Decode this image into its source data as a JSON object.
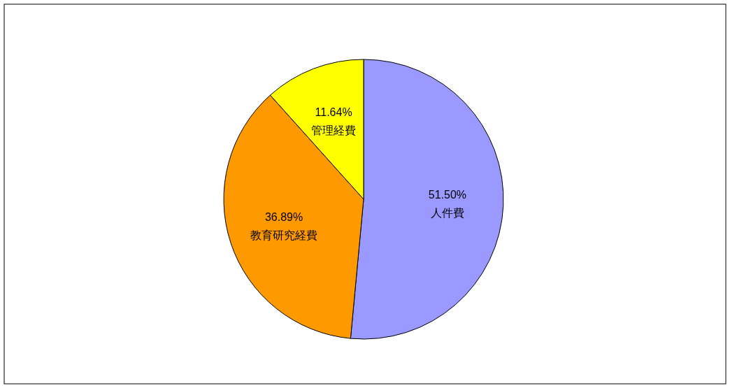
{
  "chart_data": {
    "type": "pie",
    "categories": [
      "人件費",
      "教育研究経費",
      "管理経費"
    ],
    "values": [
      51.5,
      36.89,
      11.64
    ],
    "value_labels": [
      "51.50%",
      "36.89%",
      "11.64%"
    ],
    "colors": [
      "#9999ff",
      "#ff9900",
      "#ffff00"
    ]
  }
}
